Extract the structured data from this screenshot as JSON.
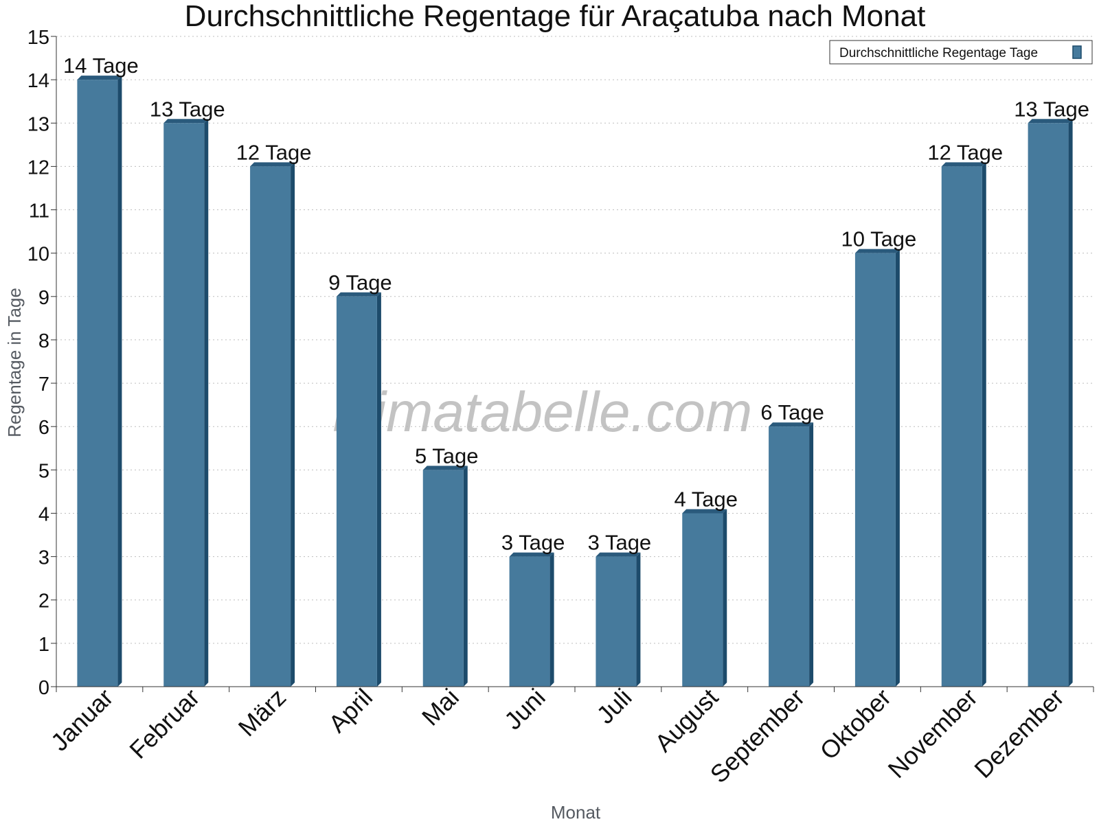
{
  "chart_data": {
    "type": "bar",
    "title": "Durchschnittliche Regentage für Araçatuba nach Monat",
    "xlabel": "Monat",
    "ylabel": "Regentage in Tage",
    "ylim": [
      0,
      15
    ],
    "yticks": [
      0,
      1,
      2,
      3,
      4,
      5,
      6,
      7,
      8,
      9,
      10,
      11,
      12,
      13,
      14,
      15
    ],
    "grid": true,
    "legend_position": "top-right",
    "categories": [
      "Januar",
      "Februar",
      "März",
      "April",
      "Mai",
      "Juni",
      "Juli",
      "August",
      "September",
      "Oktober",
      "November",
      "Dezember"
    ],
    "series": [
      {
        "name": "Durchschnittliche Regentage Tage",
        "color": "#467a9c",
        "values": [
          14,
          13,
          12,
          9,
          5,
          3,
          3,
          4,
          6,
          10,
          12,
          13
        ],
        "data_labels": [
          "14 Tage",
          "13 Tage",
          "12 Tage",
          "9 Tage",
          "5 Tage",
          "3 Tage",
          "3 Tage",
          "4 Tage",
          "6 Tage",
          "10 Tage",
          "12 Tage",
          "13 Tage"
        ]
      }
    ],
    "watermark": "klimatabelle.com"
  }
}
